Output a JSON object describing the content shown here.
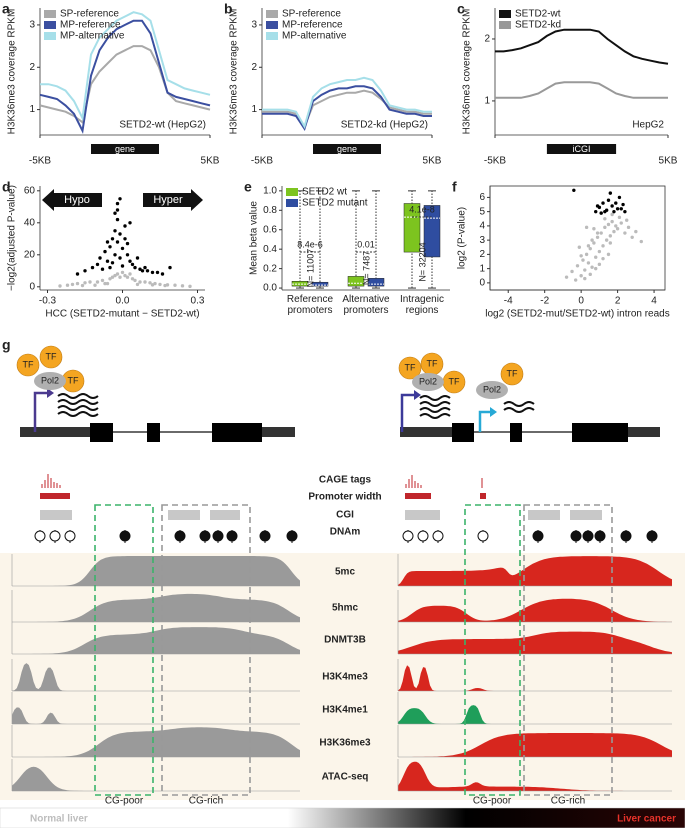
{
  "chart_data": [
    {
      "panel": "a",
      "type": "line",
      "y_label": "H3K36me3 coverage RPKM",
      "box_label": "gene",
      "annotation": "SETD2-wt (HepG2)",
      "x": [
        0,
        1,
        2,
        3,
        4,
        5,
        6,
        7,
        8,
        9,
        10,
        11,
        12,
        13,
        14,
        15,
        16,
        17,
        18,
        19,
        20
      ],
      "xlim": [
        0,
        20
      ],
      "xticks": [
        {
          "value": 0,
          "label": "-5KB"
        },
        {
          "value": 20,
          "label": "5KB"
        }
      ],
      "ylim": [
        0.4,
        3.4
      ],
      "yticks": [
        1,
        2,
        3
      ],
      "series": [
        {
          "name": "SP-reference",
          "color": "#a9a9a9",
          "values": [
            1.1,
            1.05,
            1.0,
            0.95,
            0.85,
            0.7,
            1.6,
            1.9,
            2.1,
            2.3,
            2.4,
            2.5,
            2.5,
            2.4,
            2.0,
            1.4,
            1.2,
            1.15,
            1.1,
            1.05,
            1.0
          ]
        },
        {
          "name": "MP-reference",
          "color": "#3b4fa0",
          "values": [
            1.35,
            1.3,
            1.25,
            1.1,
            0.9,
            0.5,
            1.8,
            2.4,
            2.7,
            2.9,
            3.0,
            3.1,
            3.1,
            2.8,
            2.1,
            1.4,
            1.3,
            1.25,
            1.2,
            1.15,
            1.1
          ]
        },
        {
          "name": "MP-alternative",
          "color": "#a6dfe9",
          "values": [
            1.6,
            1.6,
            1.55,
            1.45,
            1.2,
            0.8,
            2.3,
            2.7,
            2.9,
            3.1,
            3.2,
            3.3,
            3.25,
            3.1,
            2.4,
            1.7,
            1.6,
            1.5,
            1.45,
            1.4,
            1.35
          ]
        }
      ]
    },
    {
      "panel": "b",
      "type": "line",
      "y_label": "H3K36me3 coverage RPKM",
      "box_label": "gene",
      "annotation": "SETD2-kd (HepG2)",
      "x": [
        0,
        1,
        2,
        3,
        4,
        5,
        6,
        7,
        8,
        9,
        10,
        11,
        12,
        13,
        14,
        15,
        16,
        17,
        18,
        19,
        20
      ],
      "xlim": [
        0,
        20
      ],
      "xticks": [
        {
          "value": 0,
          "label": "-5KB"
        },
        {
          "value": 20,
          "label": "5KB"
        }
      ],
      "ylim": [
        0.4,
        3.4
      ],
      "yticks": [
        1,
        2,
        3
      ],
      "series": [
        {
          "name": "SP-reference",
          "color": "#a9a9a9",
          "values": [
            0.95,
            0.95,
            0.95,
            0.95,
            0.9,
            0.6,
            1.1,
            1.2,
            1.3,
            1.35,
            1.4,
            1.4,
            1.45,
            1.4,
            1.25,
            1.05,
            1.0,
            0.95,
            0.95,
            0.9,
            0.9
          ]
        },
        {
          "name": "MP-reference",
          "color": "#3b4fa0",
          "values": [
            0.9,
            0.9,
            0.9,
            0.9,
            0.85,
            0.55,
            1.2,
            1.35,
            1.45,
            1.5,
            1.5,
            1.55,
            1.55,
            1.5,
            1.3,
            1.0,
            0.95,
            0.9,
            0.9,
            0.85,
            0.85
          ]
        },
        {
          "name": "MP-alternative",
          "color": "#a6dfe9",
          "values": [
            1.0,
            1.0,
            1.0,
            1.0,
            0.95,
            0.6,
            1.3,
            1.5,
            1.6,
            1.65,
            1.7,
            1.7,
            1.75,
            1.7,
            1.45,
            1.1,
            1.05,
            1.0,
            1.0,
            0.95,
            0.95
          ]
        }
      ]
    },
    {
      "panel": "c",
      "type": "line",
      "y_label": "H3K36me3 coverage RPKM",
      "box_label": "iCGI",
      "annotation": "HepG2",
      "x": [
        0,
        1,
        2,
        3,
        4,
        5,
        6,
        7,
        8,
        9,
        10,
        11,
        12,
        13,
        14,
        15,
        16,
        17,
        18,
        19,
        20
      ],
      "xlim": [
        0,
        20
      ],
      "xticks": [
        {
          "value": 0,
          "label": "-5KB"
        },
        {
          "value": 20,
          "label": "5KB"
        }
      ],
      "ylim": [
        0.45,
        2.5
      ],
      "yticks": [
        1,
        2
      ],
      "series": [
        {
          "name": "SETD2-wt",
          "color": "#111111",
          "values": [
            1.8,
            1.8,
            1.82,
            1.85,
            1.9,
            1.95,
            2.05,
            2.12,
            2.15,
            2.15,
            2.15,
            2.15,
            2.12,
            2.0,
            1.9,
            1.8,
            1.72,
            1.68,
            1.65,
            1.62,
            1.6
          ]
        },
        {
          "name": "SETD2-kd",
          "color": "#999999",
          "values": [
            1.05,
            1.05,
            1.05,
            1.05,
            1.08,
            1.12,
            1.2,
            1.28,
            1.3,
            1.3,
            1.3,
            1.3,
            1.28,
            1.2,
            1.12,
            1.08,
            1.05,
            1.05,
            1.05,
            1.05,
            1.05
          ]
        }
      ]
    },
    {
      "panel": "d",
      "type": "scatter",
      "x_label": "HCC (SETD2-mutant − SETD2-wt)",
      "y_label": "−log2(adjusted P-value)",
      "annotations": [
        "Hypo",
        "Hyper"
      ],
      "xlim": [
        -0.33,
        0.33
      ],
      "xticks": [
        -0.3,
        {
          "value": 0,
          "label": "0.0"
        },
        0.3
      ],
      "ylim": [
        -2,
        63
      ],
      "yticks": [
        0,
        20,
        40,
        60
      ],
      "series": [
        {
          "color": "#bbbbbb",
          "x": [
            -0.25,
            -0.22,
            -0.2,
            -0.18,
            -0.15,
            -0.13,
            -0.1,
            -0.08,
            -0.07,
            -0.05,
            -0.04,
            -0.03,
            -0.02,
            -0.01,
            0,
            0.01,
            0.02,
            0.03,
            0.04,
            0.05,
            0.07,
            0.09,
            0.11,
            0.13,
            0.15,
            0.18,
            0.21,
            0.24,
            0.27,
            -0.06,
            0.06,
            -0.11,
            0.12,
            -0.16,
            0.17
          ],
          "values": [
            0.5,
            1,
            1.5,
            2,
            2.5,
            3,
            3,
            4,
            2,
            5,
            6,
            7,
            8,
            6,
            9,
            7,
            6,
            8,
            5,
            4,
            3,
            3,
            2.5,
            2,
            1.5,
            1.2,
            1,
            0.6,
            0.3,
            2,
            1.5,
            1,
            1.2,
            0.8,
            0.8
          ]
        },
        {
          "color": "#000000",
          "x": [
            -0.18,
            -0.15,
            -0.12,
            -0.1,
            -0.09,
            -0.08,
            -0.07,
            -0.06,
            -0.05,
            -0.05,
            -0.04,
            -0.04,
            -0.03,
            -0.03,
            -0.02,
            -0.02,
            -0.02,
            -0.01,
            -0.01,
            0,
            0,
            0.01,
            0.02,
            0.02,
            0.03,
            0.04,
            0.05,
            0.06,
            0.07,
            0.08,
            0.09,
            0.1,
            0.12,
            0.14,
            0.16,
            0.19,
            -0.03,
            -0.01,
            0.01,
            -0.02,
            0.03,
            -0.06
          ],
          "values": [
            8,
            10,
            12,
            14,
            18,
            11,
            22,
            16,
            25,
            12,
            30,
            15,
            20,
            35,
            42,
            28,
            52,
            18,
            33,
            24,
            13,
            30,
            20,
            27,
            16,
            14,
            12,
            18,
            11,
            10,
            12,
            10,
            9,
            9,
            8,
            12,
            46,
            55,
            38,
            48,
            40,
            28
          ]
        }
      ]
    },
    {
      "panel": "e",
      "type": "box",
      "y_label": "Mean beta value",
      "categories": [
        "Reference promoters",
        "Alternative promoters",
        "Intragenic regions"
      ],
      "p_values": [
        "8.4e-6",
        "0.01",
        "4.1e-8"
      ],
      "n_labels": [
        "N= 11007",
        "N= 7487",
        "N= 32204"
      ],
      "ylim": [
        -0.02,
        1.05
      ],
      "yticks": [
        {
          "value": 0,
          "label": "0.0"
        },
        0.2,
        0.4,
        0.6,
        0.8,
        {
          "value": 1,
          "label": "1.0"
        }
      ],
      "series": [
        {
          "name": "SETD2 wt",
          "color": "#7dc41f",
          "min": [
            0,
            0,
            0
          ],
          "q1": [
            0.02,
            0.02,
            0.37
          ],
          "median": [
            0.04,
            0.05,
            0.73
          ],
          "q3": [
            0.07,
            0.12,
            0.87
          ],
          "max": [
            1,
            1,
            1
          ]
        },
        {
          "name": "SETD2 mutant",
          "color": "#2f4da0",
          "min": [
            0,
            0,
            0
          ],
          "q1": [
            0.02,
            0.02,
            0.32
          ],
          "median": [
            0.03,
            0.04,
            0.72
          ],
          "q3": [
            0.06,
            0.1,
            0.85
          ],
          "max": [
            1,
            1,
            1
          ]
        }
      ]
    },
    {
      "panel": "f",
      "type": "scatter",
      "x_label": "log2 (SETD2-mut/SETD2-wt) intron reads",
      "y_label": "log2 (P-value)",
      "xlim": [
        -5,
        4.6
      ],
      "xticks": [
        -4,
        -2,
        0,
        2,
        4
      ],
      "ylim": [
        -0.5,
        6.8
      ],
      "yticks": [
        0,
        1,
        2,
        3,
        4,
        5,
        6
      ],
      "series": [
        {
          "color": "#bbbbbb",
          "x": [
            -0.8,
            -0.5,
            -0.3,
            -0.2,
            0,
            0.1,
            0.2,
            0.3,
            0.4,
            0.5,
            0.6,
            0.7,
            0.8,
            0.9,
            1.0,
            1.1,
            1.2,
            1.3,
            1.4,
            1.5,
            1.6,
            1.7,
            1.8,
            1.9,
            2.0,
            2.2,
            2.4,
            2.6,
            2.8,
            3.0,
            3.3,
            0.2,
            0.5,
            0.8,
            1.0,
            1.2,
            1.5,
            0.6,
            0.9,
            1.3,
            1.7,
            2.1,
            0.0,
            0.4,
            0.7,
            1.1,
            1.6,
            2.5,
            -0.1,
            0.3
          ],
          "values": [
            0.4,
            0.8,
            0.2,
            1.2,
            0.5,
            1.6,
            0.9,
            2.0,
            1.4,
            2.4,
            1.1,
            2.8,
            1.8,
            3.2,
            2.2,
            3.5,
            2.6,
            3.9,
            3.0,
            4.1,
            3.3,
            4.3,
            3.6,
            4.0,
            3.8,
            4.2,
            3.5,
            3.9,
            3.2,
            3.6,
            2.9,
            0.3,
            0.6,
            1.0,
            1.3,
            1.7,
            2.0,
            3.0,
            3.5,
            4.5,
            4.8,
            4.6,
            1.9,
            2.6,
            3.8,
            4.9,
            2.8,
            4.4,
            2.5,
            3.9
          ]
        },
        {
          "color": "#000000",
          "x": [
            -0.4,
            0.8,
            1.0,
            1.2,
            1.4,
            1.5,
            1.7,
            1.8,
            2.0,
            2.1,
            2.3,
            1.3,
            1.6,
            1.9,
            2.2,
            0.9,
            1.1,
            2.4
          ],
          "values": [
            6.5,
            5.0,
            5.3,
            5.6,
            5.1,
            5.8,
            5.4,
            5.0,
            5.2,
            6.0,
            5.5,
            5.0,
            6.3,
            5.6,
            5.2,
            5.4,
            4.9,
            5.0
          ]
        }
      ]
    }
  ],
  "diagram": {
    "panel": "g",
    "left": {
      "tf": [
        "TF",
        "TF",
        "TF"
      ],
      "pol2": "Pol2"
    },
    "right": {
      "tf": [
        "TF",
        "TF",
        "TF",
        "TF"
      ],
      "pol2": [
        "Pol2",
        "Pol2"
      ]
    },
    "rows": [
      "CAGE tags",
      "Promoter width",
      "CGI",
      "DNAm"
    ],
    "tracks": [
      "5mc",
      "5hmc",
      "DNMT3B",
      "H3K4me3",
      "H3K4me1",
      "H3K36me3",
      "ATAC-seq"
    ],
    "regions": [
      "CG-poor",
      "CG-rich"
    ],
    "gradient_labels": [
      "Normal liver",
      "Liver cancer"
    ]
  }
}
